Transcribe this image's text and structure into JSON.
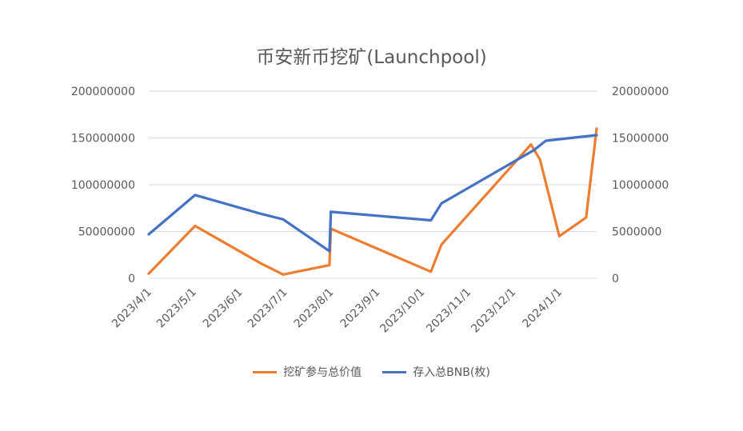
{
  "chart_data": {
    "type": "line",
    "title": "币安新币挖矿(Launchpool)",
    "xlabel": "",
    "ylabel": "",
    "x_ticks": [
      "2023/4/1",
      "2023/5/1",
      "2023/6/1",
      "2023/7/1",
      "2023/8/1",
      "2023/9/1",
      "2023/10/1",
      "2023/11/1",
      "2023/12/1",
      "2024/1/1"
    ],
    "x_range": [
      "2023-04-01",
      "2024-01-26"
    ],
    "y_left": {
      "range": [
        0,
        200000000
      ],
      "ticks": [
        "0",
        "50000000",
        "100000000",
        "150000000",
        "200000000"
      ]
    },
    "y_right": {
      "range": [
        0,
        20000000
      ],
      "ticks": [
        "0",
        "5000000",
        "10000000",
        "15000000",
        "20000000"
      ]
    },
    "grid": true,
    "legend_position": "bottom",
    "series": [
      {
        "name": "挖矿参与总价值",
        "axis": "left",
        "color": "#ED7D31",
        "points": [
          [
            "2023-04-01",
            5000000
          ],
          [
            "2023-05-02",
            56000000
          ],
          [
            "2023-06-15",
            16000000
          ],
          [
            "2023-06-30",
            4000000
          ],
          [
            "2023-07-31",
            14000000
          ],
          [
            "2023-08-01",
            53000000
          ],
          [
            "2023-10-07",
            7000000
          ],
          [
            "2023-10-14",
            36000000
          ],
          [
            "2023-12-13",
            143000000
          ],
          [
            "2023-12-19",
            127000000
          ],
          [
            "2024-01-01",
            45000000
          ],
          [
            "2024-01-19",
            65000000
          ],
          [
            "2024-01-26",
            160000000
          ]
        ]
      },
      {
        "name": "存入总BNB(枚)",
        "axis": "right",
        "color": "#4472C4",
        "points": [
          [
            "2023-04-01",
            4700000
          ],
          [
            "2023-05-02",
            8900000
          ],
          [
            "2023-06-15",
            6900000
          ],
          [
            "2023-06-30",
            6300000
          ],
          [
            "2023-07-31",
            2900000
          ],
          [
            "2023-08-01",
            7100000
          ],
          [
            "2023-10-07",
            6200000
          ],
          [
            "2023-10-14",
            8000000
          ],
          [
            "2023-12-15",
            13700000
          ],
          [
            "2023-12-23",
            14700000
          ],
          [
            "2024-01-26",
            15300000
          ]
        ]
      }
    ]
  }
}
